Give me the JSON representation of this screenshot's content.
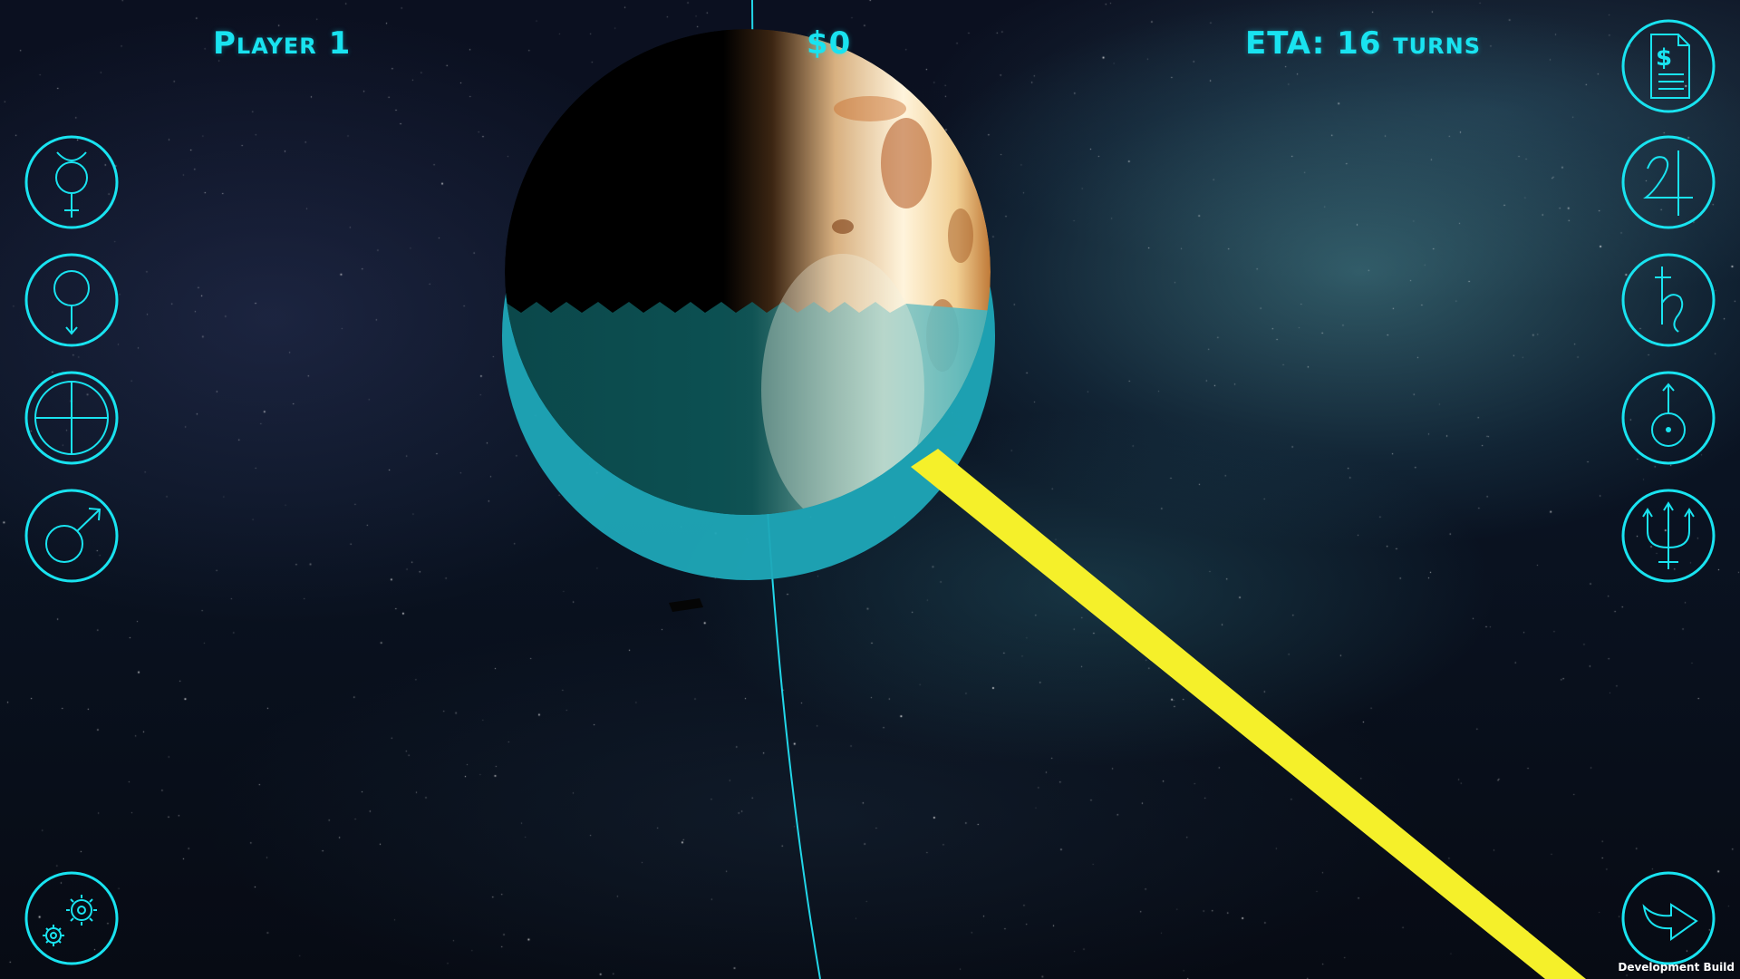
{
  "hud": {
    "player": "Player 1",
    "money": "$0",
    "eta": "ETA: 16 turns"
  },
  "left_buttons": [
    {
      "name": "mercury",
      "icon": "mercury-symbol-icon"
    },
    {
      "name": "venus",
      "icon": "venus-symbol-icon"
    },
    {
      "name": "earth",
      "icon": "earth-symbol-icon"
    },
    {
      "name": "mars",
      "icon": "mars-symbol-icon"
    }
  ],
  "right_buttons": [
    {
      "name": "finances",
      "icon": "money-document-icon"
    },
    {
      "name": "jupiter",
      "icon": "jupiter-symbol-icon"
    },
    {
      "name": "saturn",
      "icon": "saturn-symbol-icon"
    },
    {
      "name": "uranus",
      "icon": "uranus-symbol-icon"
    },
    {
      "name": "neptune",
      "icon": "neptune-symbol-icon"
    }
  ],
  "bottom_buttons": [
    {
      "name": "settings",
      "icon": "gears-icon"
    },
    {
      "name": "end-turn",
      "icon": "arrow-right-icon"
    }
  ],
  "footer": {
    "build_label": "Development Build"
  },
  "colors": {
    "hud_cyan": "#19e3f0",
    "beam_yellow": "#f5f02a",
    "orbit_cyan": "#22d6e8"
  }
}
